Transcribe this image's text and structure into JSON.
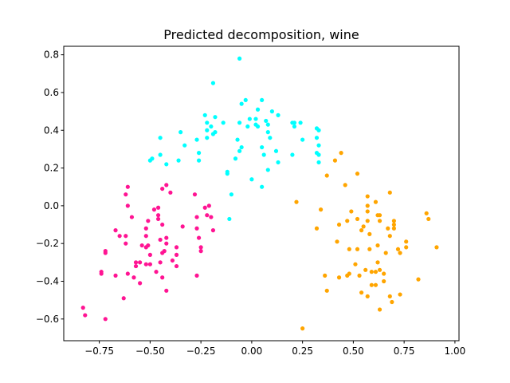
{
  "chart_data": {
    "type": "scatter",
    "title": "Predicted decomposition, wine",
    "xlabel": "",
    "ylabel": "",
    "xlim": [
      -0.925,
      1.02
    ],
    "ylim": [
      -0.715,
      0.845
    ],
    "xticks": [
      -0.75,
      -0.5,
      -0.25,
      0.0,
      0.25,
      0.5,
      0.75,
      1.0
    ],
    "yticks": [
      -0.6,
      -0.4,
      -0.2,
      0.0,
      0.2,
      0.4,
      0.6,
      0.8
    ],
    "xtick_labels": [
      "−0.75",
      "−0.50",
      "−0.25",
      "0.00",
      "0.25",
      "0.50",
      "0.75",
      "1.00"
    ],
    "ytick_labels": [
      "−0.6",
      "−0.4",
      "−0.2",
      "0.0",
      "0.2",
      "0.4",
      "0.6",
      "0.8"
    ],
    "grid": false,
    "series": [
      {
        "color": "#00ffff",
        "points": [
          [
            -0.06,
            0.78
          ],
          [
            -0.19,
            0.65
          ],
          [
            -0.23,
            0.48
          ],
          [
            -0.18,
            0.47
          ],
          [
            -0.22,
            0.44
          ],
          [
            -0.2,
            0.42
          ],
          [
            -0.22,
            0.4
          ],
          [
            -0.18,
            0.39
          ],
          [
            -0.19,
            0.38
          ],
          [
            -0.14,
            0.44
          ],
          [
            -0.05,
            0.54
          ],
          [
            -0.06,
            0.44
          ],
          [
            -0.07,
            0.35
          ],
          [
            -0.22,
            0.36
          ],
          [
            -0.27,
            0.35
          ],
          [
            -0.35,
            0.39
          ],
          [
            -0.33,
            0.32
          ],
          [
            -0.45,
            0.36
          ],
          [
            -0.45,
            0.27
          ],
          [
            -0.5,
            0.24
          ],
          [
            -0.49,
            0.25
          ],
          [
            -0.42,
            0.22
          ],
          [
            -0.36,
            0.24
          ],
          [
            -0.26,
            0.28
          ],
          [
            -0.26,
            0.24
          ],
          [
            -0.12,
            0.18
          ],
          [
            -0.12,
            0.17
          ],
          [
            -0.1,
            0.06
          ],
          [
            -0.11,
            -0.07
          ],
          [
            -0.06,
            0.29
          ],
          [
            -0.08,
            0.25
          ],
          [
            -0.05,
            0.31
          ],
          [
            -0.01,
            0.46
          ],
          [
            -0.02,
            0.42
          ],
          [
            0.02,
            0.46
          ],
          [
            0.03,
            0.51
          ],
          [
            0.05,
            0.56
          ],
          [
            0.02,
            0.43
          ],
          [
            0.03,
            0.42
          ],
          [
            0.07,
            0.45
          ],
          [
            0.08,
            0.39
          ],
          [
            0.08,
            0.43
          ],
          [
            0.1,
            0.5
          ],
          [
            0.13,
            0.48
          ],
          [
            0.09,
            0.36
          ],
          [
            0.05,
            0.31
          ],
          [
            0.06,
            0.27
          ],
          [
            0.12,
            0.29
          ],
          [
            0.08,
            0.19
          ],
          [
            0.13,
            0.23
          ],
          [
            -0.03,
            0.56
          ],
          [
            0.0,
            0.14
          ],
          [
            0.05,
            0.1
          ],
          [
            0.2,
            0.44
          ],
          [
            0.21,
            0.44
          ],
          [
            0.21,
            0.42
          ],
          [
            0.2,
            0.27
          ],
          [
            0.24,
            0.44
          ],
          [
            0.25,
            0.35
          ],
          [
            0.32,
            0.41
          ],
          [
            0.33,
            0.4
          ],
          [
            0.32,
            0.36
          ],
          [
            0.33,
            0.32
          ],
          [
            0.32,
            0.28
          ],
          [
            0.33,
            0.27
          ],
          [
            0.33,
            0.23
          ]
        ]
      },
      {
        "color": "#ff1493",
        "points": [
          [
            -0.42,
            0.11
          ],
          [
            -0.4,
            0.07
          ],
          [
            -0.44,
            0.09
          ],
          [
            -0.61,
            0.1
          ],
          [
            -0.62,
            0.06
          ],
          [
            -0.61,
            0.0
          ],
          [
            -0.59,
            -0.06
          ],
          [
            -0.62,
            -0.16
          ],
          [
            -0.62,
            -0.2
          ],
          [
            -0.65,
            -0.16
          ],
          [
            -0.67,
            -0.13
          ],
          [
            -0.67,
            -0.37
          ],
          [
            -0.72,
            -0.24
          ],
          [
            -0.72,
            -0.25
          ],
          [
            -0.74,
            -0.35
          ],
          [
            -0.74,
            -0.36
          ],
          [
            -0.72,
            -0.6
          ],
          [
            -0.83,
            -0.54
          ],
          [
            -0.82,
            -0.58
          ],
          [
            -0.63,
            -0.49
          ],
          [
            -0.57,
            -0.3
          ],
          [
            -0.57,
            -0.32
          ],
          [
            -0.55,
            -0.3
          ],
          [
            -0.55,
            -0.41
          ],
          [
            -0.58,
            -0.38
          ],
          [
            -0.61,
            -0.36
          ],
          [
            -0.52,
            -0.31
          ],
          [
            -0.5,
            -0.31
          ],
          [
            -0.5,
            -0.26
          ],
          [
            -0.52,
            -0.22
          ],
          [
            -0.54,
            -0.21
          ],
          [
            -0.51,
            -0.21
          ],
          [
            -0.52,
            -0.16
          ],
          [
            -0.52,
            -0.12
          ],
          [
            -0.51,
            -0.08
          ],
          [
            -0.48,
            -0.02
          ],
          [
            -0.46,
            -0.01
          ],
          [
            -0.46,
            -0.05
          ],
          [
            -0.46,
            -0.07
          ],
          [
            -0.44,
            -0.1
          ],
          [
            -0.44,
            -0.25
          ],
          [
            -0.43,
            -0.24
          ],
          [
            -0.45,
            -0.3
          ],
          [
            -0.47,
            -0.35
          ],
          [
            -0.44,
            -0.38
          ],
          [
            -0.42,
            -0.45
          ],
          [
            -0.42,
            -0.17
          ],
          [
            -0.45,
            -0.18
          ],
          [
            -0.42,
            -0.2
          ],
          [
            -0.39,
            -0.29
          ],
          [
            -0.37,
            -0.32
          ],
          [
            -0.37,
            -0.26
          ],
          [
            -0.37,
            -0.22
          ],
          [
            -0.34,
            -0.11
          ],
          [
            -0.28,
            0.06
          ],
          [
            -0.27,
            -0.06
          ],
          [
            -0.27,
            -0.12
          ],
          [
            -0.26,
            -0.17
          ],
          [
            -0.25,
            -0.22
          ],
          [
            -0.25,
            -0.24
          ],
          [
            -0.27,
            -0.37
          ],
          [
            -0.21,
            0.0
          ],
          [
            -0.23,
            -0.01
          ],
          [
            -0.22,
            -0.05
          ],
          [
            -0.2,
            -0.06
          ],
          [
            -0.19,
            -0.13
          ]
        ]
      },
      {
        "color": "#ffa500",
        "points": [
          [
            0.22,
            0.02
          ],
          [
            0.25,
            -0.65
          ],
          [
            0.34,
            -0.02
          ],
          [
            0.37,
            0.16
          ],
          [
            0.37,
            -0.45
          ],
          [
            0.41,
            0.24
          ],
          [
            0.42,
            -0.19
          ],
          [
            0.43,
            -0.1
          ],
          [
            0.44,
            0.28
          ],
          [
            0.46,
            0.11
          ],
          [
            0.47,
            -0.08
          ],
          [
            0.47,
            -0.37
          ],
          [
            0.48,
            -0.23
          ],
          [
            0.48,
            -0.36
          ],
          [
            0.49,
            -0.03
          ],
          [
            0.51,
            -0.31
          ],
          [
            0.52,
            0.17
          ],
          [
            0.52,
            -0.07
          ],
          [
            0.52,
            -0.23
          ],
          [
            0.53,
            -0.37
          ],
          [
            0.54,
            -0.13
          ],
          [
            0.54,
            -0.46
          ],
          [
            0.55,
            -0.11
          ],
          [
            0.56,
            -0.34
          ],
          [
            0.57,
            0.05
          ],
          [
            0.57,
            0.0
          ],
          [
            0.57,
            -0.03
          ],
          [
            0.57,
            -0.08
          ],
          [
            0.57,
            -0.48
          ],
          [
            0.58,
            -0.15
          ],
          [
            0.58,
            -0.23
          ],
          [
            0.59,
            -0.42
          ],
          [
            0.59,
            -0.35
          ],
          [
            0.61,
            -0.35
          ],
          [
            0.61,
            -0.42
          ],
          [
            0.61,
            0.02
          ],
          [
            0.62,
            -0.05
          ],
          [
            0.63,
            -0.05
          ],
          [
            0.63,
            -0.08
          ],
          [
            0.62,
            -0.21
          ],
          [
            0.62,
            -0.3
          ],
          [
            0.63,
            -0.34
          ],
          [
            0.63,
            -0.55
          ],
          [
            0.65,
            -0.36
          ],
          [
            0.65,
            -0.4
          ],
          [
            0.66,
            -0.25
          ],
          [
            0.67,
            -0.12
          ],
          [
            0.68,
            -0.16
          ],
          [
            0.68,
            0.07
          ],
          [
            0.68,
            -0.48
          ],
          [
            0.69,
            -0.51
          ],
          [
            0.7,
            -0.08
          ],
          [
            0.7,
            -0.1
          ],
          [
            0.7,
            -0.12
          ],
          [
            0.72,
            -0.23
          ],
          [
            0.73,
            -0.25
          ],
          [
            0.73,
            -0.47
          ],
          [
            0.76,
            -0.19
          ],
          [
            0.76,
            -0.22
          ],
          [
            0.82,
            -0.39
          ],
          [
            0.86,
            -0.04
          ],
          [
            0.87,
            -0.07
          ],
          [
            0.91,
            -0.22
          ],
          [
            0.32,
            -0.12
          ],
          [
            0.36,
            -0.37
          ],
          [
            0.43,
            -0.38
          ]
        ]
      }
    ]
  }
}
